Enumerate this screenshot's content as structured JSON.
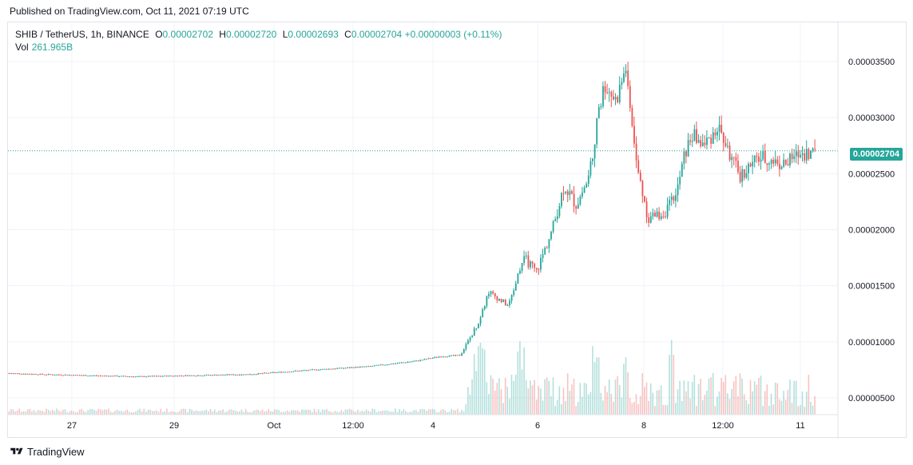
{
  "header": {
    "published": "Published on TradingView.com, Oct 11, 2021 07:19 UTC"
  },
  "legend": {
    "symbol": "SHIB / TetherUS, 1h, BINANCE",
    "open_label": "O",
    "open": "0.00002702",
    "high_label": "H",
    "high": "0.00002720",
    "low_label": "L",
    "low": "0.00002693",
    "close_label": "C",
    "close": "0.00002704",
    "change": "+0.00000003 (+0.11%)",
    "volume_label": "Vol",
    "volume": "261.965B"
  },
  "last_price_label": "0.00002704",
  "footer": {
    "brand": "TradingView"
  },
  "colors": {
    "up": "#26a69a",
    "down": "#ef5350",
    "grid": "#f0f3fa",
    "text": "#131722"
  },
  "chart_data": {
    "type": "candlestick",
    "title": "SHIB / TetherUS, 1h, BINANCE",
    "y_axis_ticks": [
      "0.00003500",
      "0.00003000",
      "0.00002500",
      "0.00002000",
      "0.00001500",
      "0.00001000",
      "0.00000500"
    ],
    "x_axis_ticks": [
      "27",
      "29",
      "Oct",
      "12:00",
      "4",
      "6",
      "8",
      "12:00",
      "11"
    ],
    "ylim": [
      3.5e-06,
      3.85e-05
    ],
    "last_price": 2.704e-05,
    "price_path": [
      {
        "t": 0,
        "price": 7.2e-06
      },
      {
        "t": 40,
        "price": 7.1e-06
      },
      {
        "t": 160,
        "price": 6.9e-06
      },
      {
        "t": 300,
        "price": 7.1e-06
      },
      {
        "t": 380,
        "price": 7.5e-06
      },
      {
        "t": 450,
        "price": 7.8e-06
      },
      {
        "t": 510,
        "price": 8.3e-06
      },
      {
        "t": 540,
        "price": 8.7e-06
      },
      {
        "t": 565,
        "price": 8.8e-06
      },
      {
        "t": 590,
        "price": 1.2e-05
      },
      {
        "t": 600,
        "price": 1.45e-05
      },
      {
        "t": 625,
        "price": 1.32e-05
      },
      {
        "t": 645,
        "price": 1.75e-05
      },
      {
        "t": 660,
        "price": 1.62e-05
      },
      {
        "t": 680,
        "price": 2e-05
      },
      {
        "t": 695,
        "price": 2.4e-05
      },
      {
        "t": 710,
        "price": 2.22e-05
      },
      {
        "t": 725,
        "price": 2.45e-05
      },
      {
        "t": 735,
        "price": 2.9e-05
      },
      {
        "t": 745,
        "price": 3.3e-05
      },
      {
        "t": 760,
        "price": 3.15e-05
      },
      {
        "t": 772,
        "price": 3.45e-05
      },
      {
        "t": 785,
        "price": 2.6e-05
      },
      {
        "t": 800,
        "price": 2.1e-05
      },
      {
        "t": 820,
        "price": 2.15e-05
      },
      {
        "t": 835,
        "price": 2.3e-05
      },
      {
        "t": 845,
        "price": 2.65e-05
      },
      {
        "t": 855,
        "price": 2.85e-05
      },
      {
        "t": 870,
        "price": 2.75e-05
      },
      {
        "t": 888,
        "price": 2.92e-05
      },
      {
        "t": 900,
        "price": 2.7e-05
      },
      {
        "t": 915,
        "price": 2.48e-05
      },
      {
        "t": 940,
        "price": 2.65e-05
      },
      {
        "t": 970,
        "price": 2.58e-05
      },
      {
        "t": 990,
        "price": 2.68e-05
      },
      {
        "t": 1020,
        "price": 2.7e-05
      }
    ],
    "volume_bars": "small bars along the bottom; spikes near days 4-6, 7, 8 and Oct 10 12:00",
    "grid": true,
    "legend_position": "top-left"
  }
}
